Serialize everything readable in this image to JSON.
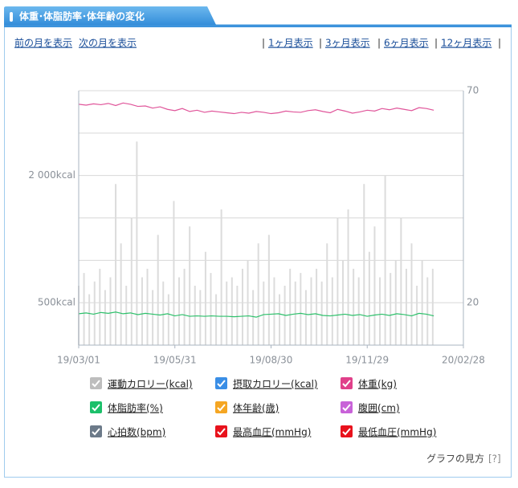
{
  "header": {
    "title": "体重･体脂肪率･体年齢の変化"
  },
  "nav": {
    "prev": "前の月を表示",
    "next": "次の月を表示",
    "ranges": [
      "1ヶ月表示",
      "3ヶ月表示",
      "6ヶ月表示",
      "12ヶ月表示"
    ]
  },
  "chart_data": {
    "type": "bar+line",
    "xlim": [
      0,
      364
    ],
    "xticks": [
      {
        "value": 0,
        "label": "19/03/01"
      },
      {
        "value": 91,
        "label": "19/05/31"
      },
      {
        "value": 182,
        "label": "19/08/30"
      },
      {
        "value": 273,
        "label": "19/11/29"
      },
      {
        "value": 364,
        "label": "20/02/28"
      }
    ],
    "ylim": [
      0,
      3000
    ],
    "ygrid": [
      0,
      500,
      1000,
      1500,
      2000,
      2500,
      3000
    ],
    "yticks": [
      {
        "value": 2000,
        "label": "2 000kcal"
      },
      {
        "value": 500,
        "label": "500kcal"
      }
    ],
    "y2lim": [
      10,
      70
    ],
    "y2ticks": [
      70,
      20
    ],
    "grid": true,
    "series": [
      {
        "type": "bar",
        "axis": "y",
        "color": "#dcdcdc",
        "x": [
          0,
          5,
          10,
          15,
          20,
          25,
          30,
          35,
          40,
          45,
          50,
          55,
          60,
          65,
          70,
          75,
          80,
          85,
          90,
          95,
          100,
          105,
          110,
          115,
          120,
          125,
          130,
          135,
          140,
          145,
          150,
          155,
          160,
          165,
          170,
          175,
          180,
          185,
          190,
          195,
          200,
          205,
          210,
          215,
          220,
          225,
          230,
          235,
          240,
          245,
          250,
          255,
          260,
          265,
          270,
          275,
          280,
          285,
          290,
          295,
          300,
          305,
          310,
          315,
          320,
          325,
          330,
          335
        ],
        "values": [
          700,
          850,
          600,
          750,
          900,
          650,
          800,
          1900,
          1200,
          700,
          1500,
          2400,
          800,
          900,
          650,
          1300,
          750,
          600,
          1700,
          800,
          900,
          1400,
          700,
          650,
          1100,
          850,
          600,
          1600,
          750,
          800,
          700,
          900,
          1000,
          650,
          1200,
          750,
          1300,
          800,
          600,
          700,
          900,
          750,
          850,
          650,
          800,
          900,
          750,
          1200,
          800,
          1500,
          1000,
          1600,
          900,
          800,
          1900,
          1100,
          1400,
          800,
          2000,
          850,
          1000,
          1500,
          900,
          1200,
          700,
          1000,
          800,
          900
        ]
      },
      {
        "type": "line",
        "axis": "y2",
        "color": "#e0559a",
        "x": [
          0,
          7,
          14,
          21,
          28,
          35,
          42,
          49,
          56,
          63,
          70,
          77,
          84,
          91,
          98,
          105,
          112,
          119,
          126,
          133,
          140,
          147,
          154,
          161,
          168,
          175,
          182,
          189,
          196,
          203,
          210,
          217,
          224,
          231,
          238,
          245,
          252,
          259,
          266,
          273,
          280,
          287,
          294,
          301,
          308,
          315,
          322,
          329,
          336
        ],
        "values": [
          66.8,
          66.6,
          66.9,
          66.7,
          67.0,
          66.5,
          67.1,
          66.8,
          66.3,
          66.4,
          65.9,
          66.2,
          65.6,
          65.3,
          65.8,
          65.1,
          65.4,
          64.9,
          65.2,
          65.0,
          64.8,
          64.6,
          64.9,
          64.7,
          65.1,
          64.9,
          64.6,
          64.8,
          65.2,
          65.0,
          64.9,
          65.3,
          65.5,
          65.1,
          64.8,
          65.6,
          65.2,
          64.7,
          65.0,
          65.4,
          65.2,
          65.8,
          65.5,
          65.9,
          65.6,
          65.3,
          66.0,
          65.8,
          65.4
        ]
      },
      {
        "type": "line",
        "axis": "y2",
        "color": "#2cc06a",
        "x": [
          0,
          7,
          14,
          21,
          28,
          35,
          42,
          49,
          56,
          63,
          70,
          77,
          84,
          91,
          98,
          105,
          112,
          119,
          126,
          133,
          140,
          147,
          154,
          161,
          168,
          175,
          182,
          189,
          196,
          203,
          210,
          217,
          224,
          231,
          238,
          245,
          252,
          259,
          266,
          273,
          280,
          287,
          294,
          301,
          308,
          315,
          322,
          329,
          336
        ],
        "values": [
          17.4,
          17.6,
          17.3,
          17.7,
          17.5,
          17.8,
          17.4,
          17.6,
          17.2,
          17.5,
          17.3,
          17.1,
          17.4,
          16.9,
          17.2,
          16.8,
          16.9,
          16.8,
          16.9,
          16.8,
          16.8,
          16.7,
          16.8,
          16.9,
          16.6,
          17.2,
          17.3,
          17.4,
          17.0,
          17.3,
          17.5,
          17.2,
          17.4,
          17.0,
          16.9,
          17.1,
          17.3,
          17.0,
          17.2,
          16.8,
          17.1,
          17.3,
          17.0,
          17.4,
          17.2,
          16.9,
          17.5,
          17.3,
          16.9
        ]
      }
    ],
    "legend": [
      {
        "name": "運動カロリー(kcal)",
        "color": "#bdbdbd"
      },
      {
        "name": "摂取カロリー(kcal)",
        "color": "#3a8ee6"
      },
      {
        "name": "体重(kg)",
        "color": "#e0408a"
      },
      {
        "name": "体脂肪率(%)",
        "color": "#1cc06a"
      },
      {
        "name": "体年齢(歳)",
        "color": "#f5a623"
      },
      {
        "name": "腹囲(cm)",
        "color": "#c862d8"
      },
      {
        "name": "心拍数(bpm)",
        "color": "#6c7a89"
      },
      {
        "name": "最高血圧(mmHg)",
        "color": "#e8121c"
      },
      {
        "name": "最低血圧(mmHg)",
        "color": "#e8121c"
      }
    ]
  },
  "footer": {
    "help": "グラフの見方",
    "help_mark": "[?]"
  }
}
